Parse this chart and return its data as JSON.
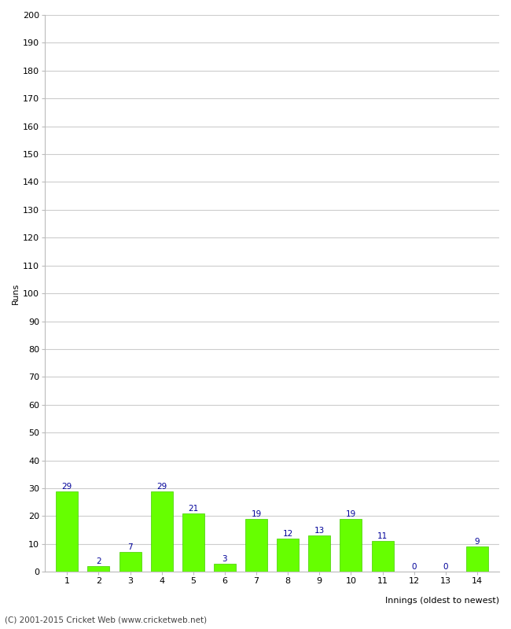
{
  "innings": [
    1,
    2,
    3,
    4,
    5,
    6,
    7,
    8,
    9,
    10,
    11,
    12,
    13,
    14
  ],
  "runs": [
    29,
    2,
    7,
    29,
    21,
    3,
    19,
    12,
    13,
    19,
    11,
    0,
    0,
    9
  ],
  "bar_color": "#66ff00",
  "bar_edge_color": "#44cc00",
  "label_color": "#000099",
  "ylabel": "Runs",
  "xlabel": "Innings (oldest to newest)",
  "ylim": [
    0,
    200
  ],
  "yticks": [
    0,
    10,
    20,
    30,
    40,
    50,
    60,
    70,
    80,
    90,
    100,
    110,
    120,
    130,
    140,
    150,
    160,
    170,
    180,
    190,
    200
  ],
  "footer": "(C) 2001-2015 Cricket Web (www.cricketweb.net)",
  "background_color": "#ffffff",
  "grid_color": "#cccccc",
  "label_fontsize": 7.5,
  "axis_fontsize": 8,
  "footer_fontsize": 7.5
}
